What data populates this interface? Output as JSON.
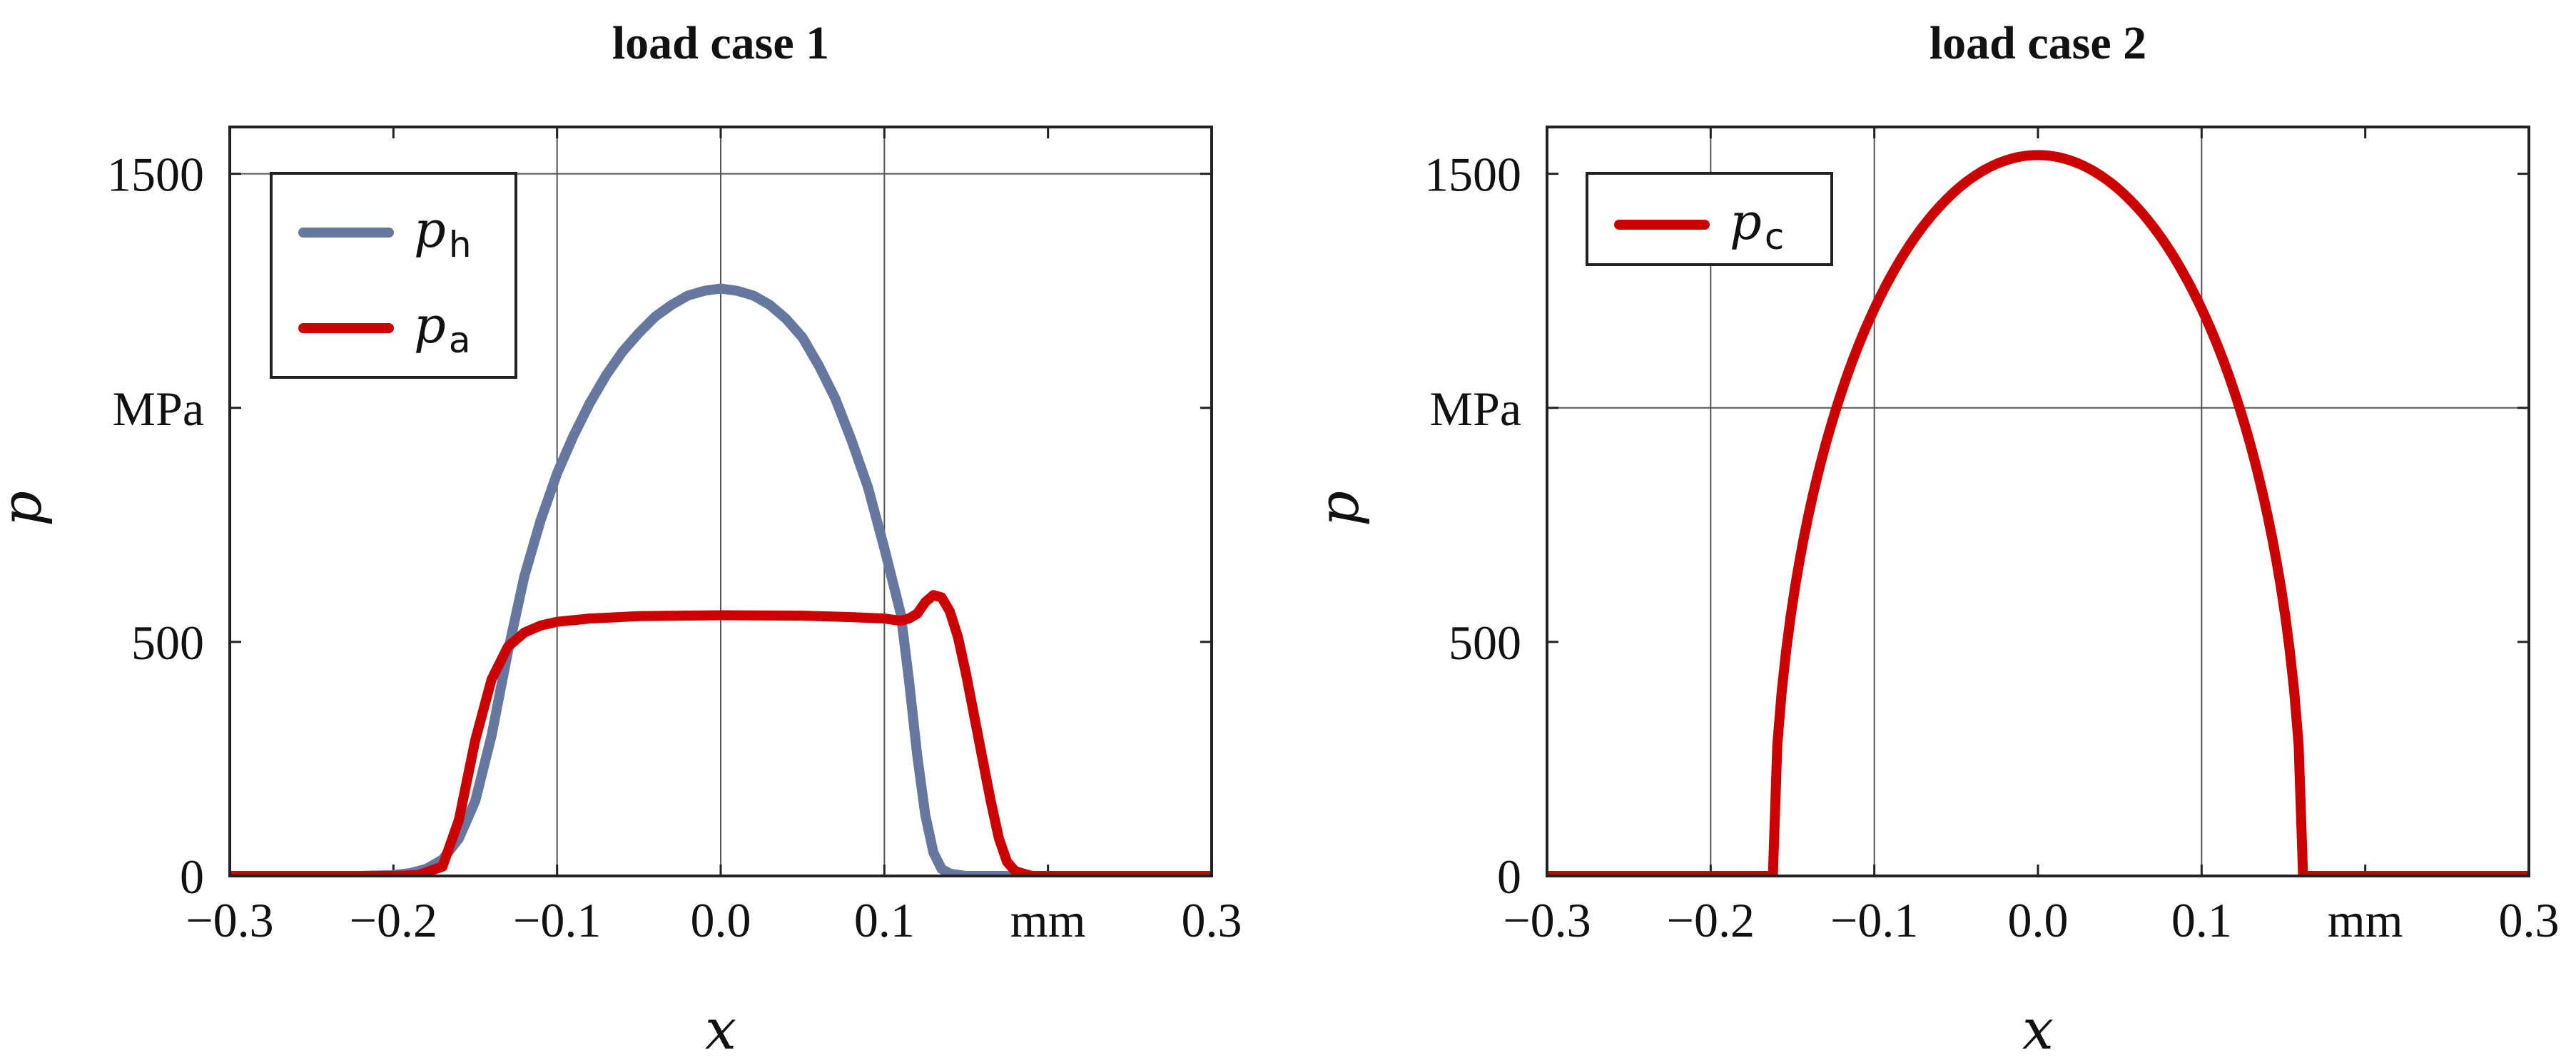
{
  "chart_data": [
    {
      "type": "line",
      "title": "load case 1",
      "xlabel": "x",
      "ylabel": "p",
      "xlim": [
        -0.3,
        0.3
      ],
      "ylim": [
        0,
        1600
      ],
      "xticks": [
        {
          "value": -0.3,
          "label": "−0.3"
        },
        {
          "value": -0.2,
          "label": "−0.2"
        },
        {
          "value": -0.1,
          "label": "−0.1"
        },
        {
          "value": 0.0,
          "label": "0.0"
        },
        {
          "value": 0.1,
          "label": "0.1"
        },
        {
          "value": 0.2,
          "label": "mm"
        },
        {
          "value": 0.3,
          "label": "0.3"
        }
      ],
      "yticks": [
        {
          "value": 0,
          "label": "0"
        },
        {
          "value": 500,
          "label": "500"
        },
        {
          "value": 1000,
          "label": "MPa"
        },
        {
          "value": 1500,
          "label": "1500"
        }
      ],
      "xgrid": [
        -0.1,
        0.0,
        0.1
      ],
      "ygrid": [
        1500
      ],
      "legend": {
        "position": "top-left"
      },
      "series": [
        {
          "name": "p",
          "subscript": "h",
          "color": "#6677a0",
          "x": [
            -0.3,
            -0.22,
            -0.2,
            -0.19,
            -0.18,
            -0.17,
            -0.16,
            -0.15,
            -0.14,
            -0.13,
            -0.12,
            -0.11,
            -0.1,
            -0.09,
            -0.08,
            -0.07,
            -0.06,
            -0.05,
            -0.04,
            -0.03,
            -0.02,
            -0.01,
            0.0,
            0.01,
            0.02,
            0.03,
            0.04,
            0.05,
            0.06,
            0.07,
            0.08,
            0.09,
            0.1,
            0.11,
            0.115,
            0.12,
            0.125,
            0.13,
            0.135,
            0.14,
            0.15,
            0.17,
            0.3
          ],
          "y": [
            0,
            0,
            2,
            6,
            15,
            35,
            80,
            160,
            300,
            480,
            640,
            760,
            860,
            940,
            1010,
            1070,
            1120,
            1160,
            1195,
            1220,
            1240,
            1250,
            1255,
            1250,
            1240,
            1220,
            1190,
            1150,
            1090,
            1020,
            930,
            830,
            700,
            560,
            420,
            260,
            130,
            50,
            15,
            5,
            0,
            0,
            0
          ]
        },
        {
          "name": "p",
          "subscript": "a",
          "color": "#cc0000",
          "x": [
            -0.3,
            -0.2,
            -0.185,
            -0.17,
            -0.16,
            -0.15,
            -0.14,
            -0.13,
            -0.12,
            -0.11,
            -0.1,
            -0.08,
            -0.05,
            0.0,
            0.05,
            0.08,
            0.1,
            0.11,
            0.115,
            0.12,
            0.125,
            0.13,
            0.135,
            0.14,
            0.145,
            0.15,
            0.155,
            0.16,
            0.165,
            0.17,
            0.175,
            0.18,
            0.19,
            0.3
          ],
          "y": [
            0,
            0,
            2,
            20,
            120,
            290,
            420,
            490,
            520,
            535,
            543,
            550,
            555,
            557,
            556,
            553,
            550,
            545,
            550,
            560,
            585,
            600,
            595,
            565,
            510,
            430,
            340,
            250,
            160,
            80,
            30,
            10,
            0,
            0
          ]
        }
      ]
    },
    {
      "type": "line",
      "title": "load case 2",
      "xlabel": "x",
      "ylabel": "p",
      "xlim": [
        -0.3,
        0.3
      ],
      "ylim": [
        0,
        1600
      ],
      "xticks": [
        {
          "value": -0.3,
          "label": "−0.3"
        },
        {
          "value": -0.2,
          "label": "−0.2"
        },
        {
          "value": -0.1,
          "label": "−0.1"
        },
        {
          "value": 0.0,
          "label": "0.0"
        },
        {
          "value": 0.1,
          "label": "0.1"
        },
        {
          "value": 0.2,
          "label": "mm"
        },
        {
          "value": 0.3,
          "label": "0.3"
        }
      ],
      "yticks": [
        {
          "value": 0,
          "label": "0"
        },
        {
          "value": 500,
          "label": "500"
        },
        {
          "value": 1000,
          "label": "MPa"
        },
        {
          "value": 1500,
          "label": "1500"
        }
      ],
      "xgrid": [
        -0.2,
        -0.1,
        0.1
      ],
      "ygrid": [
        1000
      ],
      "legend": {
        "position": "top-left"
      },
      "series": [
        {
          "name": "p",
          "subscript": "c",
          "color": "#cc0000",
          "profile": "hertzian",
          "peak": 1540,
          "half_width": 0.162
        }
      ]
    }
  ]
}
